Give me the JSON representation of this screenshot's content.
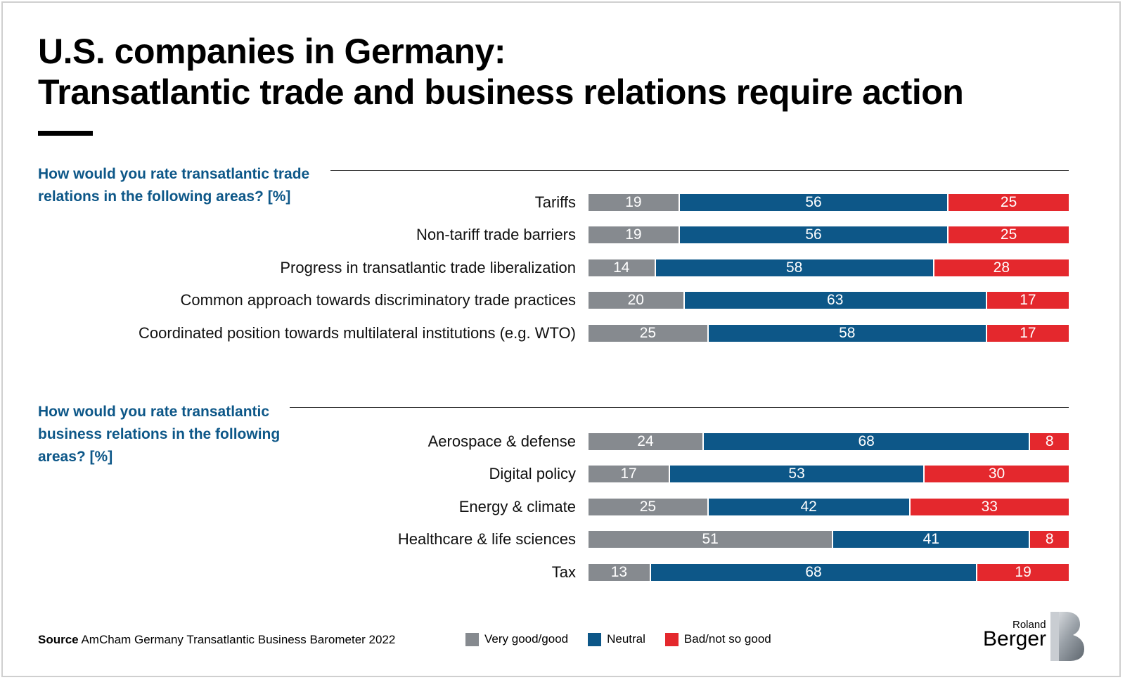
{
  "title_line1": "U.S. companies in Germany:",
  "title_line2": "Transatlantic trade and business relations require action",
  "colors": {
    "very_good": "#868a8f",
    "neutral": "#0d5788",
    "bad": "#e4282d",
    "question": "#0d5788"
  },
  "legend": [
    {
      "label": "Very good/good",
      "color": "#868a8f"
    },
    {
      "label": "Neutral",
      "color": "#0d5788"
    },
    {
      "label": "Bad/not so good",
      "color": "#e4282d"
    }
  ],
  "source": {
    "label": "Source",
    "text": "AmCham Germany Transatlantic Business Barometer 2022"
  },
  "logo": {
    "line1": "Roland",
    "line2": "Berger"
  },
  "chart_data": [
    {
      "type": "bar",
      "stacked": true,
      "orientation": "horizontal",
      "title": "How would you rate transatlantic trade relations in the following areas? [%]",
      "title_lines": [
        "How would you rate transatlantic trade",
        "relations in the following areas? [%]"
      ],
      "categories": [
        "Tariffs",
        "Non-tariff trade barriers",
        "Progress in transatlantic trade liberalization",
        "Common approach towards discriminatory trade practices",
        "Coordinated position towards multilateral institutions (e.g. WTO)"
      ],
      "series": [
        {
          "name": "Very good/good",
          "values": [
            19,
            19,
            14,
            20,
            25
          ]
        },
        {
          "name": "Neutral",
          "values": [
            56,
            56,
            58,
            63,
            58
          ]
        },
        {
          "name": "Bad/not so good",
          "values": [
            25,
            25,
            28,
            17,
            17
          ]
        }
      ]
    },
    {
      "type": "bar",
      "stacked": true,
      "orientation": "horizontal",
      "title": "How would you rate transatlantic business relations in the following areas? [%]",
      "title_lines": [
        "How would you rate transatlantic",
        "business relations in the following",
        "areas? [%]"
      ],
      "categories": [
        "Aerospace & defense",
        "Digital policy",
        "Energy & climate",
        "Healthcare & life sciences",
        "Tax"
      ],
      "series": [
        {
          "name": "Very good/good",
          "values": [
            24,
            17,
            25,
            51,
            13
          ]
        },
        {
          "name": "Neutral",
          "values": [
            68,
            53,
            42,
            41,
            68
          ]
        },
        {
          "name": "Bad/not so good",
          "values": [
            8,
            30,
            33,
            8,
            19
          ]
        }
      ]
    }
  ]
}
